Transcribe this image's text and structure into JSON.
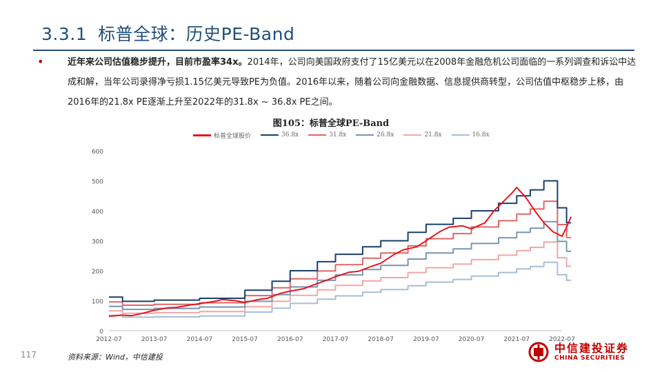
{
  "section": {
    "number": "3.3.1",
    "title": "标普全球：历史PE-Band"
  },
  "paragraph": {
    "bold": "近年来公司估值稳步提升，目前市盈率34x。",
    "rest": "2014年，公司向美国政府支付了15亿美元以在2008年金融危机公司面临的一系列调查和诉讼中达成和解，当年公司录得净亏损1.15亿美元导致PE为负值。2016年以来，随着公司向金融数据、信息提供商转型，公司估值中枢稳步上移，由2016年的21.8x PE逐渐上升至2022年的31.8x ~ 36.8x PE之间。"
  },
  "figure_title": "图105：标普全球PE-Band",
  "colors": {
    "price": "#e8141c",
    "b368": "#173f6b",
    "b318": "#e06466",
    "b268": "#7a93b3",
    "b218": "#f0a6a3",
    "b168": "#a7bdd6",
    "title": "#1f4e79"
  },
  "chart_data": {
    "type": "line",
    "title": "",
    "xlabel": "",
    "ylabel": "",
    "ylim": [
      0,
      600
    ],
    "yticks": [
      "0",
      "100",
      "200",
      "300",
      "400",
      "500",
      "600"
    ],
    "xticks": [
      "2012-07",
      "2013-07",
      "2014-07",
      "2015-07",
      "2016-07",
      "2017-07",
      "2018-07",
      "2019-07",
      "2020-07",
      "2021-07",
      "2022-07"
    ],
    "grid": false,
    "legend_position": "top",
    "series": [
      {
        "name": "标普全球股价",
        "key": "price",
        "x": [
          0,
          0.3,
          0.5,
          0.8,
          1.0,
          1.3,
          1.5,
          1.8,
          2.0,
          2.3,
          2.5,
          2.8,
          3.0,
          3.3,
          3.5,
          3.8,
          4.0,
          4.3,
          4.5,
          4.8,
          5.0,
          5.3,
          5.5,
          5.8,
          6.0,
          6.3,
          6.5,
          6.8,
          7.0,
          7.3,
          7.5,
          7.8,
          8.0,
          8.3,
          8.5,
          8.7,
          8.9,
          9.0,
          9.2,
          9.4,
          9.6,
          9.8,
          10.0,
          10.1,
          10.2
        ],
        "y": [
          48,
          52,
          50,
          60,
          68,
          76,
          78,
          86,
          90,
          97,
          104,
          100,
          94,
          104,
          108,
          125,
          132,
          140,
          152,
          168,
          180,
          195,
          198,
          215,
          225,
          255,
          270,
          280,
          300,
          330,
          345,
          350,
          340,
          360,
          400,
          430,
          460,
          478,
          445,
          400,
          360,
          330,
          315,
          345,
          380
        ]
      },
      {
        "name": "36.8x",
        "key": "b368",
        "x": [
          0,
          0.3,
          0.3,
          1.0,
          1.0,
          2.0,
          2.0,
          3.0,
          3.0,
          3.6,
          3.6,
          4.0,
          4.0,
          4.6,
          4.6,
          5.0,
          5.0,
          5.6,
          5.6,
          6.0,
          6.0,
          6.6,
          6.6,
          7.0,
          7.0,
          7.6,
          7.6,
          8.0,
          8.0,
          8.6,
          8.6,
          9.0,
          9.0,
          9.3,
          9.3,
          9.6,
          9.6,
          9.9,
          9.9,
          10.1,
          10.1,
          10.2
        ],
        "y": [
          112,
          112,
          98,
          98,
          102,
          102,
          108,
          108,
          135,
          135,
          165,
          165,
          200,
          200,
          230,
          230,
          255,
          255,
          280,
          280,
          300,
          300,
          328,
          328,
          355,
          355,
          375,
          375,
          400,
          400,
          425,
          425,
          450,
          450,
          470,
          470,
          500,
          500,
          410,
          410,
          360,
          360
        ]
      },
      {
        "name": "31.8x",
        "key": "b318",
        "x": [
          0,
          0.3,
          0.3,
          1.0,
          1.0,
          2.0,
          2.0,
          3.0,
          3.0,
          3.6,
          3.6,
          4.0,
          4.0,
          4.6,
          4.6,
          5.0,
          5.0,
          5.6,
          5.6,
          6.0,
          6.0,
          6.6,
          6.6,
          7.0,
          7.0,
          7.6,
          7.6,
          8.0,
          8.0,
          8.6,
          8.6,
          9.0,
          9.0,
          9.3,
          9.3,
          9.6,
          9.6,
          9.9,
          9.9,
          10.1,
          10.1,
          10.2
        ],
        "y": [
          96,
          96,
          85,
          85,
          88,
          88,
          93,
          93,
          117,
          117,
          143,
          143,
          173,
          173,
          199,
          199,
          220,
          220,
          242,
          242,
          259,
          259,
          283,
          283,
          307,
          307,
          324,
          324,
          346,
          346,
          367,
          367,
          389,
          389,
          406,
          406,
          432,
          432,
          354,
          354,
          311,
          311
        ]
      },
      {
        "name": "26.8x",
        "key": "b268",
        "x": [
          0,
          0.3,
          0.3,
          1.0,
          1.0,
          2.0,
          2.0,
          3.0,
          3.0,
          3.6,
          3.6,
          4.0,
          4.0,
          4.6,
          4.6,
          5.0,
          5.0,
          5.6,
          5.6,
          6.0,
          6.0,
          6.6,
          6.6,
          7.0,
          7.0,
          7.6,
          7.6,
          8.0,
          8.0,
          8.6,
          8.6,
          9.0,
          9.0,
          9.3,
          9.3,
          9.6,
          9.6,
          9.9,
          9.9,
          10.1,
          10.1,
          10.2
        ],
        "y": [
          81,
          81,
          71,
          71,
          74,
          74,
          79,
          79,
          98,
          98,
          120,
          120,
          146,
          146,
          168,
          168,
          186,
          186,
          204,
          204,
          218,
          218,
          239,
          239,
          259,
          259,
          273,
          273,
          291,
          291,
          310,
          310,
          328,
          328,
          342,
          342,
          364,
          364,
          298,
          298,
          265,
          265
        ]
      },
      {
        "name": "21.8x",
        "key": "b218",
        "x": [
          0,
          0.3,
          0.3,
          1.0,
          1.0,
          2.0,
          2.0,
          3.0,
          3.0,
          3.6,
          3.6,
          4.0,
          4.0,
          4.6,
          4.6,
          5.0,
          5.0,
          5.6,
          5.6,
          6.0,
          6.0,
          6.6,
          6.6,
          7.0,
          7.0,
          7.6,
          7.6,
          8.0,
          8.0,
          8.6,
          8.6,
          9.0,
          9.0,
          9.3,
          9.3,
          9.6,
          9.6,
          9.9,
          9.9,
          10.1,
          10.1,
          10.2
        ],
        "y": [
          66,
          66,
          58,
          58,
          60,
          60,
          64,
          64,
          80,
          80,
          98,
          98,
          118,
          118,
          136,
          136,
          151,
          151,
          166,
          166,
          177,
          177,
          194,
          194,
          210,
          210,
          222,
          222,
          237,
          237,
          252,
          252,
          267,
          267,
          278,
          278,
          296,
          296,
          243,
          243,
          215,
          215
        ]
      },
      {
        "name": "16.8x",
        "key": "b168",
        "x": [
          0,
          0.3,
          0.3,
          1.0,
          1.0,
          2.0,
          2.0,
          3.0,
          3.0,
          3.6,
          3.6,
          4.0,
          4.0,
          4.6,
          4.6,
          5.0,
          5.0,
          5.6,
          5.6,
          6.0,
          6.0,
          6.6,
          6.6,
          7.0,
          7.0,
          7.6,
          7.6,
          8.0,
          8.0,
          8.6,
          8.6,
          9.0,
          9.0,
          9.3,
          9.3,
          9.6,
          9.6,
          9.9,
          9.9,
          10.1,
          10.1,
          10.2
        ],
        "y": [
          51,
          51,
          45,
          45,
          46,
          46,
          49,
          49,
          62,
          62,
          75,
          75,
          91,
          91,
          105,
          105,
          116,
          116,
          128,
          128,
          137,
          137,
          150,
          150,
          162,
          162,
          171,
          171,
          182,
          182,
          194,
          194,
          206,
          206,
          214,
          214,
          228,
          228,
          187,
          187,
          168,
          168
        ]
      }
    ]
  },
  "page_number": "117",
  "source": "资料来源：Wind，中信建投",
  "logo": {
    "cn": "中信建投证券",
    "en": "CHINA SECURITIES"
  }
}
